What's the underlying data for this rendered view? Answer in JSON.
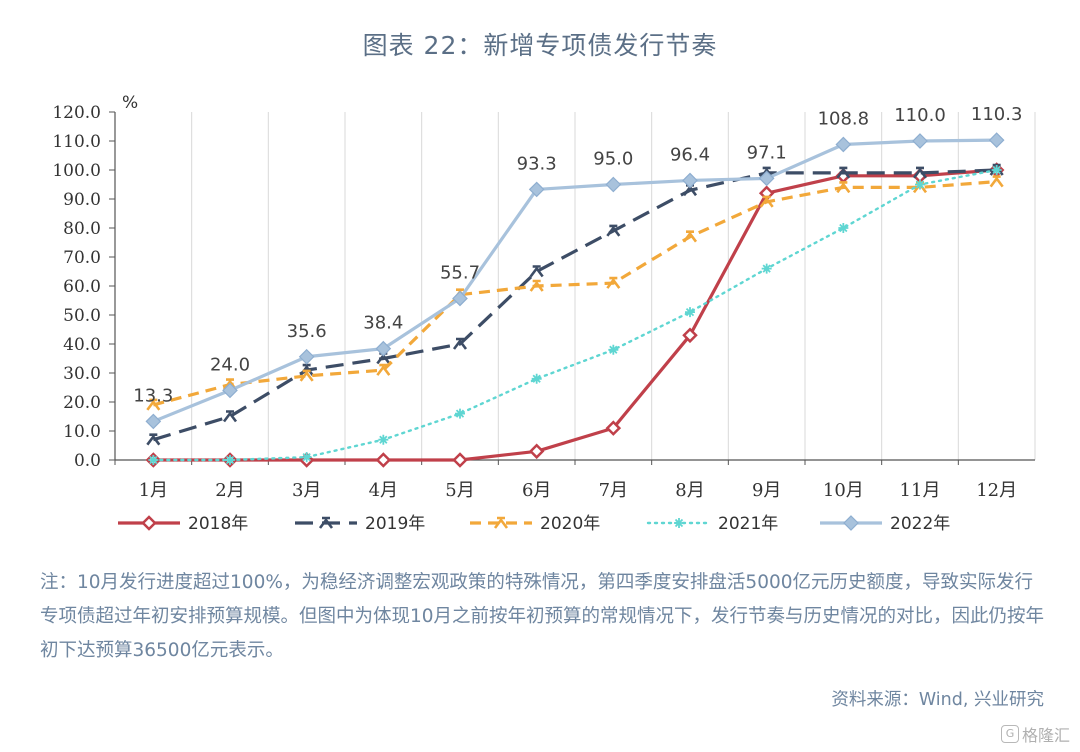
{
  "title": "图表 22：新增专项债发行节奏",
  "chart_data": {
    "type": "line",
    "unit_label": "%",
    "categories": [
      "1月",
      "2月",
      "3月",
      "4月",
      "5月",
      "6月",
      "7月",
      "8月",
      "9月",
      "10月",
      "11月",
      "12月"
    ],
    "ylim": [
      0,
      120
    ],
    "yticks": [
      "0.0",
      "10.0",
      "20.0",
      "30.0",
      "40.0",
      "50.0",
      "60.0",
      "70.0",
      "80.0",
      "90.0",
      "100.0",
      "110.0",
      "120.0"
    ],
    "grid": "vertical",
    "legend_position": "bottom",
    "series": [
      {
        "name": "2018年",
        "color": "#c0404a",
        "dash": "solid",
        "marker": "diamond-open",
        "values": [
          0,
          0,
          0,
          0,
          0,
          3,
          11,
          43,
          92,
          98,
          98,
          100
        ]
      },
      {
        "name": "2019年",
        "color": "#3d4d66",
        "dash": "long-dash",
        "marker": "arrow",
        "values": [
          7,
          15,
          31,
          35,
          40,
          65,
          79,
          93,
          99,
          99,
          99,
          100
        ]
      },
      {
        "name": "2020年",
        "color": "#f2a83a",
        "dash": "dash",
        "marker": "arrow",
        "values": [
          19,
          26,
          29,
          31,
          57,
          60,
          61,
          77,
          89,
          94,
          94,
          96
        ]
      },
      {
        "name": "2021年",
        "color": "#5fd6d2",
        "dash": "dot",
        "marker": "star",
        "values": [
          0,
          0,
          1,
          7,
          16,
          28,
          38,
          51,
          66,
          80,
          95,
          100
        ]
      },
      {
        "name": "2022年",
        "color": "#a8c2dc",
        "dash": "solid",
        "marker": "diamond-filled",
        "values": [
          13.3,
          24.0,
          35.6,
          38.4,
          55.7,
          93.3,
          95.0,
          96.4,
          97.1,
          108.8,
          110.0,
          110.3
        ],
        "data_labels": [
          "13.3",
          "24.0",
          "35.6",
          "38.4",
          "55.7",
          "93.3",
          "95.0",
          "96.4",
          "97.1",
          "108.8",
          "110.0",
          "110.3"
        ]
      }
    ]
  },
  "note": "注：10月发行进度超过100%，为稳经济调整宏观政策的特殊情况，第四季度安排盘活5000亿元历史额度，导致实际发行专项债超过年初安排预算规模。但图中为体现10月之前按年初预算的常规情况下，发行节奏与历史情况的对比，因此仍按年初下达预算36500亿元表示。",
  "source": "资料来源：Wind, 兴业研究",
  "watermark": "格隆汇"
}
